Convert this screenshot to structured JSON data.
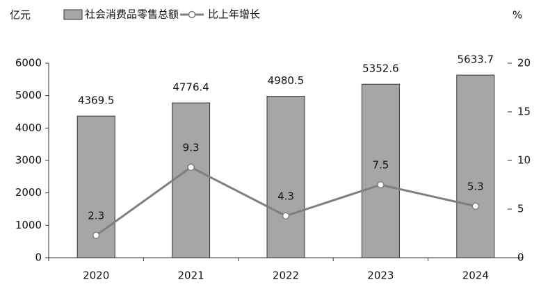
{
  "chart_data": {
    "type": "bar",
    "y_unit": "亿元",
    "y2_unit": "%",
    "categories": [
      "2020",
      "2021",
      "2022",
      "2023",
      "2024"
    ],
    "series": [
      {
        "name": "社会消费品零售总额",
        "type": "bar",
        "color": "#a6a6a6",
        "values": [
          4369.5,
          4776.4,
          4980.5,
          5352.6,
          5633.7
        ]
      },
      {
        "name": "比上年增长",
        "type": "line",
        "axis": "y2",
        "color": "#7f7f7f",
        "values": [
          2.3,
          9.3,
          4.3,
          7.5,
          5.3
        ]
      }
    ],
    "ylim": [
      0,
      6000
    ],
    "yticks": [
      0,
      1000,
      2000,
      3000,
      4000,
      5000,
      6000
    ],
    "y2lim": [
      0,
      20
    ],
    "y2ticks": [
      0,
      5,
      10,
      15,
      20
    ]
  }
}
